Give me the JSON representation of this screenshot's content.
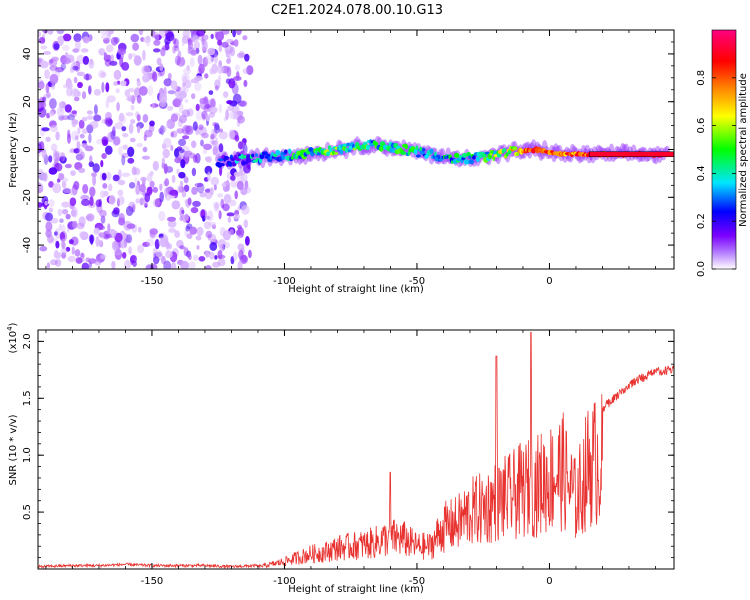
{
  "title": "C2E1.2024.078.00.10.G13",
  "chart_data": [
    {
      "type": "heatmap",
      "xlabel": "Height of straight line (km)",
      "ylabel": "Frequency (Hz)",
      "xlim": [
        -193,
        47
      ],
      "ylim": [
        -50,
        50
      ],
      "xticks": [
        -150,
        -100,
        -50,
        0
      ],
      "yticks": [
        -40,
        -20,
        0,
        20,
        40
      ],
      "description_of_content": null,
      "noise_region_x": [
        -193,
        -113
      ],
      "signal_trace": {
        "x": [
          -125,
          -115,
          -105,
          -95,
          -85,
          -75,
          -65,
          -55,
          -45,
          -35,
          -25,
          -15,
          -5,
          5,
          15,
          25,
          35,
          45
        ],
        "y": [
          -5,
          -4,
          -3,
          -2,
          -1,
          1,
          2,
          0,
          -2,
          -4,
          -3,
          -1,
          0,
          -2,
          -2,
          -2,
          -2,
          -2
        ],
        "amplitude": [
          0.2,
          0.3,
          0.35,
          0.4,
          0.45,
          0.45,
          0.4,
          0.45,
          0.35,
          0.4,
          0.4,
          0.6,
          0.85,
          0.75,
          0.8,
          0.85,
          0.9,
          0.95
        ]
      },
      "colorbar": {
        "label": "Normalized spectral amplitude",
        "range": [
          0,
          1
        ],
        "ticks": [
          "0.0",
          "0.2",
          "0.4",
          "0.6",
          "0.8"
        ],
        "colors": [
          "#ffffff",
          "#7a00ff",
          "#0000ff",
          "#00e5ff",
          "#00ff00",
          "#ffff00",
          "#ff8000",
          "#ff0000",
          "#ff0080"
        ]
      }
    },
    {
      "type": "line",
      "xlabel": "Height of straight line (km)",
      "ylabel": "SNR (10 * v/v)",
      "y_scale_label": "(x10",
      "y_scale_exp": "4",
      "y_scale_close": ")",
      "xlim": [
        -193,
        47
      ],
      "ylim": [
        0,
        2.1
      ],
      "xticks": [
        -150,
        -100,
        -50,
        0
      ],
      "yticks": [
        "0.5",
        "1.0",
        "1.5",
        "2.0"
      ],
      "color": "#e8322f",
      "series": [
        {
          "x": [
            -193,
            -180,
            -170,
            -160,
            -150,
            -140,
            -130,
            -120,
            -110,
            -105,
            -100,
            -95,
            -90,
            -85,
            -80,
            -75,
            -70,
            -65,
            -60,
            -55,
            -50,
            -45,
            -40,
            -35,
            -30,
            -25,
            -20,
            -15,
            -10,
            -5,
            0,
            5,
            10,
            15,
            20,
            25,
            30,
            35,
            40,
            47
          ],
          "y": [
            0.02,
            0.03,
            0.03,
            0.04,
            0.03,
            0.03,
            0.03,
            0.02,
            0.03,
            0.06,
            0.1,
            0.15,
            0.2,
            0.22,
            0.28,
            0.3,
            0.32,
            0.36,
            0.42,
            0.4,
            0.3,
            0.3,
            0.55,
            0.6,
            0.75,
            0.8,
            0.9,
            0.95,
            1.05,
            1.1,
            1.2,
            1.3,
            0.9,
            1.4,
            1.45,
            1.55,
            1.65,
            1.72,
            1.77,
            1.8
          ]
        }
      ],
      "peaks": [
        {
          "x": -60,
          "y": 0.85
        },
        {
          "x": -20,
          "y": 1.87
        },
        {
          "x": -7,
          "y": 2.08
        },
        {
          "x": 12,
          "y": 0.5
        }
      ]
    }
  ]
}
